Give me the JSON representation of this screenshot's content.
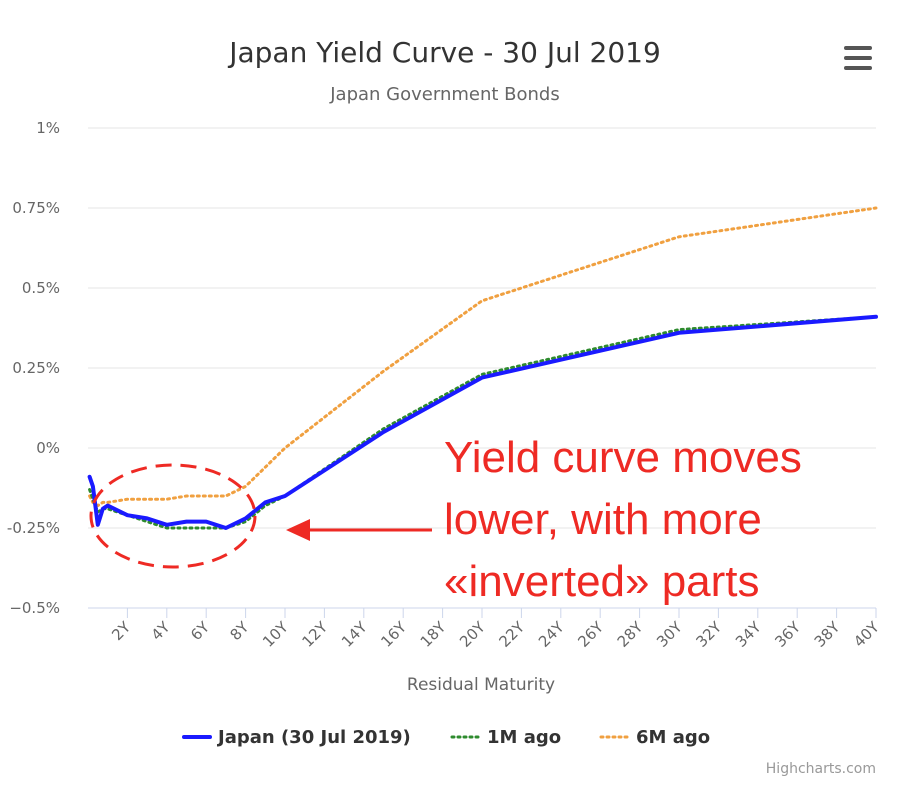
{
  "chart_data": {
    "type": "line",
    "title": "Japan Yield Curve - 30 Jul 2019",
    "subtitle": "Japan Government Bonds",
    "xlabel": "Residual Maturity",
    "ylabel": "",
    "x_ticks": [
      "2Y",
      "4Y",
      "6Y",
      "8Y",
      "10Y",
      "12Y",
      "14Y",
      "16Y",
      "18Y",
      "20Y",
      "22Y",
      "24Y",
      "26Y",
      "28Y",
      "30Y",
      "32Y",
      "34Y",
      "36Y",
      "38Y",
      "40Y"
    ],
    "xlim": [
      0,
      40
    ],
    "y_ticks": [
      "1%",
      "0.75%",
      "0.5%",
      "0.25%",
      "0%",
      "-0.25%",
      "−0.5%"
    ],
    "y_tick_values": [
      1,
      0.75,
      0.5,
      0.25,
      0,
      -0.25,
      -0.5
    ],
    "ylim": [
      -0.5,
      1
    ],
    "grid": true,
    "legend_position": "bottom-center",
    "series": [
      {
        "name": "Japan (30 Jul 2019)",
        "color": "#1a1aff",
        "dash": "solid",
        "x": [
          0.08,
          0.25,
          0.5,
          0.75,
          1,
          2,
          3,
          4,
          5,
          6,
          7,
          8,
          9,
          10,
          15,
          20,
          30,
          40
        ],
        "y": [
          -0.09,
          -0.12,
          -0.24,
          -0.19,
          -0.18,
          -0.21,
          -0.22,
          -0.24,
          -0.23,
          -0.23,
          -0.25,
          -0.22,
          -0.17,
          -0.15,
          0.05,
          0.22,
          0.36,
          0.41
        ]
      },
      {
        "name": "1M ago",
        "color": "#2e8b2e",
        "dash": "dotted",
        "x": [
          0.08,
          0.25,
          0.5,
          0.75,
          1,
          2,
          3,
          4,
          5,
          6,
          7,
          8,
          9,
          10,
          15,
          20,
          30,
          40
        ],
        "y": [
          -0.13,
          -0.16,
          -0.2,
          -0.19,
          -0.19,
          -0.21,
          -0.23,
          -0.25,
          -0.25,
          -0.25,
          -0.25,
          -0.23,
          -0.18,
          -0.15,
          0.06,
          0.23,
          0.37,
          0.41
        ]
      },
      {
        "name": "6M ago",
        "color": "#f0a040",
        "dash": "dotted",
        "x": [
          0.08,
          0.25,
          0.5,
          0.75,
          1,
          2,
          3,
          4,
          5,
          6,
          7,
          8,
          9,
          10,
          15,
          20,
          30,
          40
        ],
        "y": [
          -0.15,
          -0.17,
          -0.18,
          -0.17,
          -0.17,
          -0.16,
          -0.16,
          -0.16,
          -0.15,
          -0.15,
          -0.15,
          -0.12,
          -0.06,
          0.0,
          0.24,
          0.46,
          0.66,
          0.75
        ]
      }
    ],
    "annotation": {
      "text_lines": [
        "Yield curve moves",
        "lower, with more",
        "«inverted» parts"
      ],
      "color": "#ee2a24"
    }
  },
  "menu": {
    "icon": "hamburger-menu-icon"
  },
  "credits": "Highcharts.com"
}
